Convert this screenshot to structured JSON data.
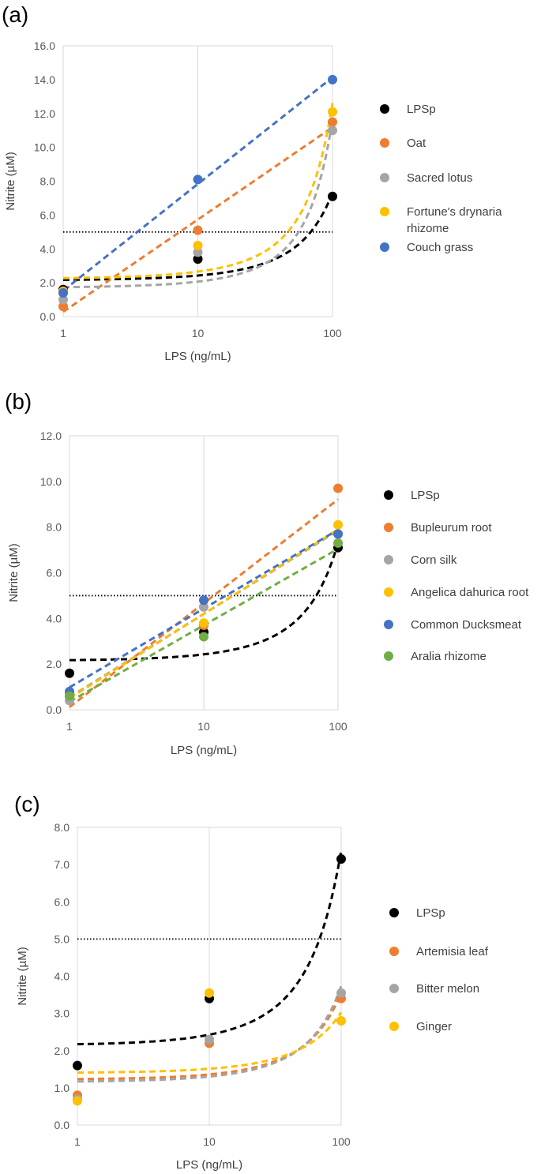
{
  "figure": {
    "description_panels": 3
  },
  "chart_data": [
    {
      "type": "scatter",
      "panel_label": "(a)",
      "xlabel": "LPS (ng/mL)",
      "ylabel": "Nitrite (µM)",
      "x_scale": "log",
      "x_ticks": [
        "1",
        "10",
        "100"
      ],
      "y_ticks": [
        "0.0",
        "2.0",
        "4.0",
        "6.0",
        "8.0",
        "10.0",
        "12.0",
        "14.0",
        "16.0"
      ],
      "xlim": [
        1,
        100
      ],
      "ylim": [
        0,
        16
      ],
      "threshold": 5.0,
      "grid": "vertical",
      "legend_position": "right",
      "series": [
        {
          "name": "LPSp",
          "color": "#000000",
          "x": [
            1,
            10,
            100
          ],
          "y": [
            1.6,
            3.4,
            7.1
          ],
          "trend": "exponential"
        },
        {
          "name": "Oat",
          "color": "#ED7D31",
          "x": [
            1,
            10,
            100
          ],
          "y": [
            0.6,
            5.1,
            11.5
          ],
          "trend": "logarithmic"
        },
        {
          "name": "Sacred lotus",
          "color": "#A5A5A5",
          "x": [
            1,
            10,
            100
          ],
          "y": [
            1.0,
            3.8,
            11.0
          ],
          "trend": "exponential"
        },
        {
          "name": "Fortune's drynaria rhizome",
          "color": "#FFC000",
          "x": [
            1,
            10,
            100
          ],
          "y": [
            1.5,
            4.2,
            12.1
          ],
          "trend": "exponential"
        },
        {
          "name": "Couch grass",
          "color": "#4472C4",
          "x": [
            1,
            10,
            100
          ],
          "y": [
            1.4,
            8.1,
            14.0
          ],
          "trend": "logarithmic"
        }
      ]
    },
    {
      "type": "scatter",
      "panel_label": "(b)",
      "xlabel": "LPS (ng/mL)",
      "ylabel": "Nitrite (µM)",
      "x_scale": "log",
      "x_ticks": [
        "1",
        "10",
        "100"
      ],
      "y_ticks": [
        "0.0",
        "2.0",
        "4.0",
        "6.0",
        "8.0",
        "10.0",
        "12.0"
      ],
      "xlim": [
        1,
        100
      ],
      "ylim": [
        0,
        12
      ],
      "threshold": 5.0,
      "grid": "vertical",
      "legend_position": "right",
      "series": [
        {
          "name": "LPSp",
          "color": "#000000",
          "x": [
            1,
            10,
            100
          ],
          "y": [
            1.6,
            3.4,
            7.1
          ],
          "trend": "exponential"
        },
        {
          "name": "Bupleurum root",
          "color": "#ED7D31",
          "x": [
            1,
            10,
            100
          ],
          "y": [
            0.6,
            3.7,
            9.7
          ],
          "trend": "logarithmic"
        },
        {
          "name": "Corn silk",
          "color": "#A5A5A5",
          "x": [
            1,
            10,
            100
          ],
          "y": [
            0.4,
            4.5,
            7.7
          ],
          "trend": "logarithmic"
        },
        {
          "name": "Angelica dahurica root",
          "color": "#FFC000",
          "x": [
            1,
            10,
            100
          ],
          "y": [
            0.7,
            3.8,
            8.1
          ],
          "trend": "logarithmic"
        },
        {
          "name": "Common Ducksmeat",
          "color": "#4472C4",
          "x": [
            1,
            10,
            100
          ],
          "y": [
            0.8,
            4.8,
            7.7
          ],
          "trend": "logarithmic"
        },
        {
          "name": "Aralia rhizome",
          "color": "#70AD47",
          "x": [
            1,
            10,
            100
          ],
          "y": [
            0.6,
            3.2,
            7.3
          ],
          "trend": "logarithmic"
        }
      ]
    },
    {
      "type": "scatter",
      "panel_label": "(c)",
      "xlabel": "LPS (ng/mL)",
      "ylabel": "Nitrite (µM)",
      "x_scale": "log",
      "x_ticks": [
        "1",
        "10",
        "100"
      ],
      "y_ticks": [
        "0.0",
        "1.0",
        "2.0",
        "3.0",
        "4.0",
        "5.0",
        "6.0",
        "7.0",
        "8.0"
      ],
      "xlim": [
        1,
        100
      ],
      "ylim": [
        0,
        8
      ],
      "threshold": 5.0,
      "grid": "vertical",
      "legend_position": "right",
      "series": [
        {
          "name": "LPSp",
          "color": "#000000",
          "x": [
            1,
            10,
            100
          ],
          "y": [
            1.6,
            3.4,
            7.15
          ],
          "trend": "exponential"
        },
        {
          "name": "Artemisia leaf",
          "color": "#ED7D31",
          "x": [
            1,
            10,
            100
          ],
          "y": [
            0.8,
            2.2,
            3.4
          ],
          "trend": "exponential"
        },
        {
          "name": "Bitter melon",
          "color": "#A5A5A5",
          "x": [
            1,
            10,
            100
          ],
          "y": [
            0.7,
            2.3,
            3.55
          ],
          "trend": "exponential"
        },
        {
          "name": "Ginger",
          "color": "#FFC000",
          "x": [
            1,
            10,
            100
          ],
          "y": [
            0.65,
            3.55,
            2.8
          ],
          "trend": "exponential"
        }
      ]
    }
  ]
}
